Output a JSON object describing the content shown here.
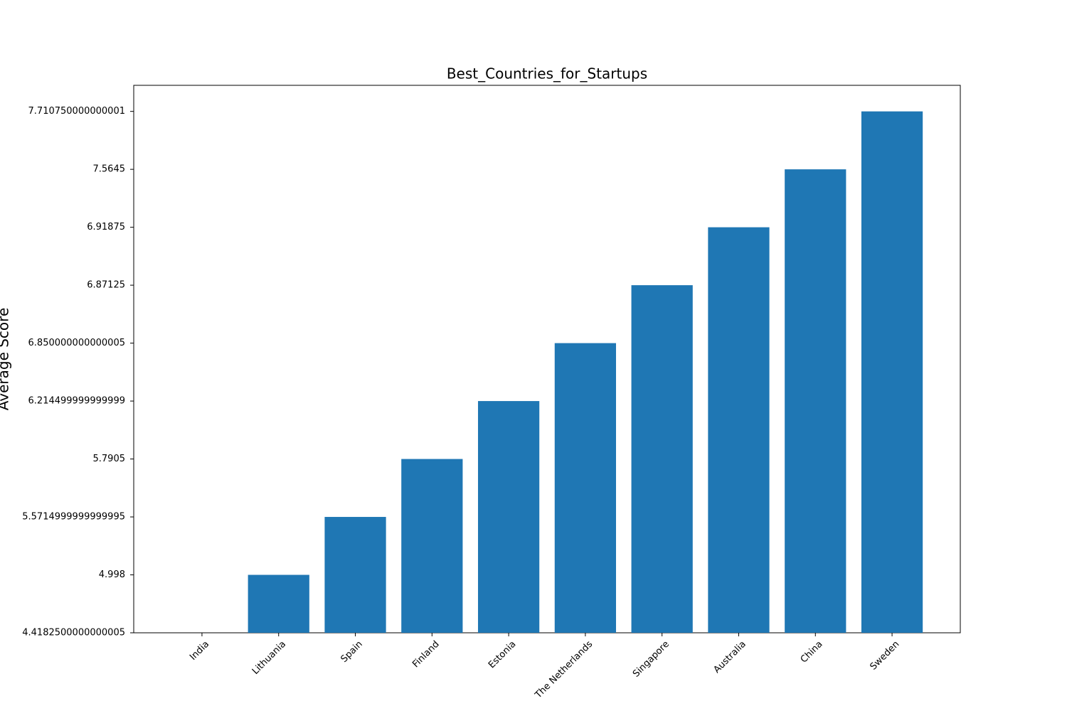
{
  "chart_data": {
    "type": "bar",
    "title": "Best_Countries_for_Startups",
    "ylabel": "Average Score",
    "categories": [
      "India",
      "Lithuania",
      "Spain",
      "Finland",
      "Estonia",
      "The Netherlands",
      "Singapore",
      "Australia",
      "China",
      "Sweden"
    ],
    "values": [
      4.4182500000000005,
      4.998,
      5.5714999999999995,
      5.7905,
      6.214499999999999,
      6.850000000000005,
      6.87125,
      6.91875,
      7.5645,
      7.710750000000001
    ],
    "color": "#1f77b4",
    "y_scale": "categorical",
    "yticks": [
      4.4182500000000005,
      4.998,
      5.5714999999999995,
      5.7905,
      6.214499999999999,
      6.850000000000005,
      6.87125,
      6.91875,
      7.5645,
      7.710750000000001
    ],
    "grid": false
  }
}
